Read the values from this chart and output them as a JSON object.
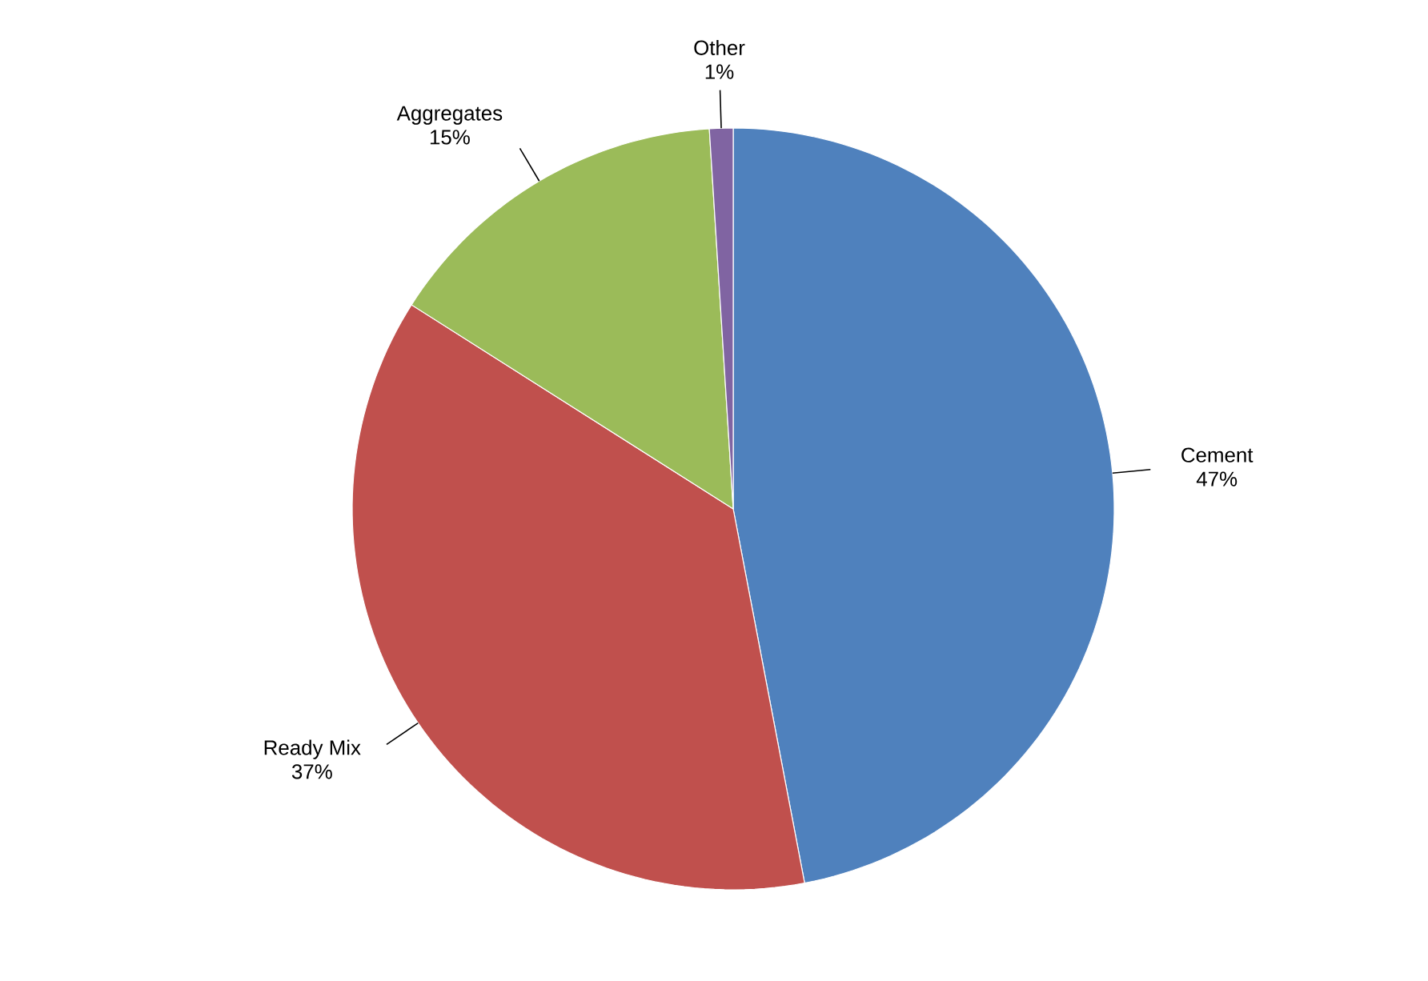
{
  "chart_data": {
    "type": "pie",
    "categories": [
      "Cement",
      "Ready Mix",
      "Aggregates",
      "Other"
    ],
    "values": [
      47,
      37,
      15,
      1
    ],
    "colors": [
      "#4f81bd",
      "#c0504d",
      "#9bbb59",
      "#8064a2"
    ],
    "value_labels": [
      "47%",
      "37%",
      "15%",
      "1%"
    ]
  }
}
